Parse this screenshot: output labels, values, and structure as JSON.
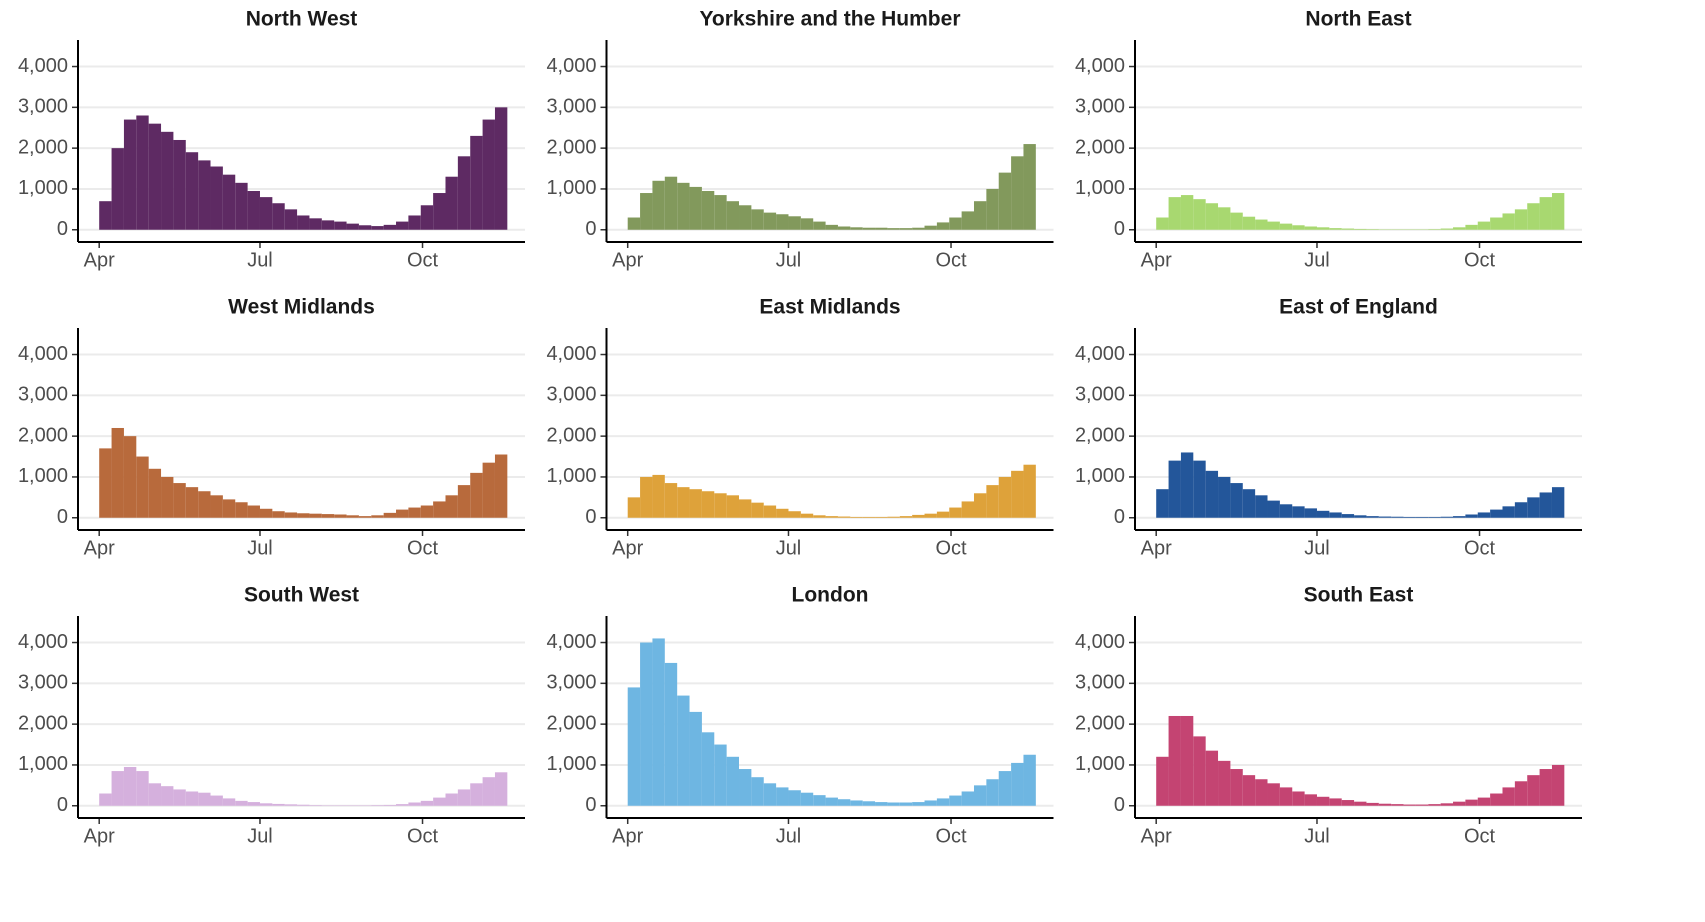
{
  "chart_data": [
    {
      "type": "bar",
      "title": "North West",
      "color": "#5e2a63",
      "x": [
        0,
        7,
        14,
        21,
        28,
        35,
        42,
        49,
        56,
        63,
        70,
        77,
        84,
        91,
        98,
        105,
        112,
        119,
        126,
        133,
        140,
        147,
        154,
        161,
        168,
        175,
        182,
        189,
        196,
        203,
        210,
        217,
        224
      ],
      "values": [
        700,
        2000,
        2700,
        2800,
        2600,
        2400,
        2200,
        1900,
        1700,
        1550,
        1350,
        1150,
        950,
        800,
        650,
        500,
        350,
        280,
        230,
        200,
        150,
        110,
        90,
        120,
        200,
        350,
        600,
        900,
        1300,
        1800,
        2300,
        2700,
        3000
      ],
      "xlim": [
        -12,
        241
      ],
      "ylim": [
        -300,
        4650
      ],
      "xticks": [
        {
          "value": 0,
          "label": "Apr"
        },
        {
          "value": 91,
          "label": "Jul"
        },
        {
          "value": 183,
          "label": "Oct"
        }
      ],
      "yticks": [
        0,
        {
          "value": 1000,
          "label": "1,000"
        },
        {
          "value": 2000,
          "label": "2,000"
        },
        {
          "value": 3000,
          "label": "3,000"
        },
        {
          "value": 4000,
          "label": "4,000"
        }
      ],
      "grid": true
    },
    {
      "type": "bar",
      "title": "Yorkshire and the Humber",
      "color": "#82995c",
      "x": [
        0,
        7,
        14,
        21,
        28,
        35,
        42,
        49,
        56,
        63,
        70,
        77,
        84,
        91,
        98,
        105,
        112,
        119,
        126,
        133,
        140,
        147,
        154,
        161,
        168,
        175,
        182,
        189,
        196,
        203,
        210,
        217,
        224
      ],
      "values": [
        300,
        900,
        1200,
        1300,
        1150,
        1050,
        950,
        850,
        700,
        600,
        500,
        420,
        380,
        330,
        280,
        200,
        120,
        80,
        60,
        50,
        50,
        40,
        40,
        50,
        100,
        180,
        300,
        450,
        700,
        1000,
        1400,
        1800,
        2100
      ],
      "xlim": [
        -12,
        241
      ],
      "ylim": [
        -300,
        4650
      ],
      "xticks": [
        {
          "value": 0,
          "label": "Apr"
        },
        {
          "value": 91,
          "label": "Jul"
        },
        {
          "value": 183,
          "label": "Oct"
        }
      ],
      "yticks": [
        0,
        {
          "value": 1000,
          "label": "1,000"
        },
        {
          "value": 2000,
          "label": "2,000"
        },
        {
          "value": 3000,
          "label": "3,000"
        },
        {
          "value": 4000,
          "label": "4,000"
        }
      ],
      "grid": true
    },
    {
      "type": "bar",
      "title": "North East",
      "color": "#a8d870",
      "x": [
        0,
        7,
        14,
        21,
        28,
        35,
        42,
        49,
        56,
        63,
        70,
        77,
        84,
        91,
        98,
        105,
        112,
        119,
        126,
        133,
        140,
        147,
        154,
        161,
        168,
        175,
        182,
        189,
        196,
        203,
        210,
        217,
        224
      ],
      "values": [
        300,
        800,
        850,
        750,
        650,
        550,
        420,
        320,
        250,
        200,
        150,
        110,
        80,
        60,
        40,
        30,
        20,
        15,
        10,
        10,
        10,
        10,
        15,
        30,
        60,
        120,
        200,
        300,
        400,
        500,
        650,
        800,
        900
      ],
      "xlim": [
        -12,
        241
      ],
      "ylim": [
        -300,
        4650
      ],
      "xticks": [
        {
          "value": 0,
          "label": "Apr"
        },
        {
          "value": 91,
          "label": "Jul"
        },
        {
          "value": 183,
          "label": "Oct"
        }
      ],
      "yticks": [
        0,
        {
          "value": 1000,
          "label": "1,000"
        },
        {
          "value": 2000,
          "label": "2,000"
        },
        {
          "value": 3000,
          "label": "3,000"
        },
        {
          "value": 4000,
          "label": "4,000"
        }
      ],
      "grid": true
    },
    {
      "type": "bar",
      "title": "West Midlands",
      "color": "#b86a3c",
      "x": [
        0,
        7,
        14,
        21,
        28,
        35,
        42,
        49,
        56,
        63,
        70,
        77,
        84,
        91,
        98,
        105,
        112,
        119,
        126,
        133,
        140,
        147,
        154,
        161,
        168,
        175,
        182,
        189,
        196,
        203,
        210,
        217,
        224
      ],
      "values": [
        1700,
        2200,
        2000,
        1500,
        1200,
        1000,
        850,
        750,
        650,
        550,
        450,
        380,
        300,
        220,
        160,
        130,
        110,
        100,
        90,
        80,
        60,
        40,
        60,
        120,
        200,
        250,
        300,
        400,
        550,
        800,
        1100,
        1350,
        1550
      ],
      "xlim": [
        -12,
        241
      ],
      "ylim": [
        -300,
        4650
      ],
      "xticks": [
        {
          "value": 0,
          "label": "Apr"
        },
        {
          "value": 91,
          "label": "Jul"
        },
        {
          "value": 183,
          "label": "Oct"
        }
      ],
      "yticks": [
        0,
        {
          "value": 1000,
          "label": "1,000"
        },
        {
          "value": 2000,
          "label": "2,000"
        },
        {
          "value": 3000,
          "label": "3,000"
        },
        {
          "value": 4000,
          "label": "4,000"
        }
      ],
      "grid": true
    },
    {
      "type": "bar",
      "title": "East Midlands",
      "color": "#dea23a",
      "x": [
        0,
        7,
        14,
        21,
        28,
        35,
        42,
        49,
        56,
        63,
        70,
        77,
        84,
        91,
        98,
        105,
        112,
        119,
        126,
        133,
        140,
        147,
        154,
        161,
        168,
        175,
        182,
        189,
        196,
        203,
        210,
        217,
        224
      ],
      "values": [
        500,
        1000,
        1050,
        850,
        750,
        700,
        650,
        600,
        550,
        450,
        370,
        300,
        220,
        160,
        100,
        60,
        40,
        30,
        20,
        20,
        20,
        25,
        40,
        70,
        100,
        150,
        250,
        400,
        600,
        800,
        1000,
        1150,
        1300
      ],
      "xlim": [
        -12,
        241
      ],
      "ylim": [
        -300,
        4650
      ],
      "xticks": [
        {
          "value": 0,
          "label": "Apr"
        },
        {
          "value": 91,
          "label": "Jul"
        },
        {
          "value": 183,
          "label": "Oct"
        }
      ],
      "yticks": [
        0,
        {
          "value": 1000,
          "label": "1,000"
        },
        {
          "value": 2000,
          "label": "2,000"
        },
        {
          "value": 3000,
          "label": "3,000"
        },
        {
          "value": 4000,
          "label": "4,000"
        }
      ],
      "grid": true
    },
    {
      "type": "bar",
      "title": "East of England",
      "color": "#23569a",
      "x": [
        0,
        7,
        14,
        21,
        28,
        35,
        42,
        49,
        56,
        63,
        70,
        77,
        84,
        91,
        98,
        105,
        112,
        119,
        126,
        133,
        140,
        147,
        154,
        161,
        168,
        175,
        182,
        189,
        196,
        203,
        210,
        217,
        224
      ],
      "values": [
        700,
        1400,
        1600,
        1400,
        1150,
        1000,
        850,
        700,
        550,
        420,
        330,
        280,
        230,
        170,
        130,
        90,
        60,
        40,
        30,
        25,
        20,
        20,
        20,
        25,
        40,
        80,
        130,
        200,
        280,
        380,
        500,
        620,
        750
      ],
      "xlim": [
        -12,
        241
      ],
      "ylim": [
        -300,
        4650
      ],
      "xticks": [
        {
          "value": 0,
          "label": "Apr"
        },
        {
          "value": 91,
          "label": "Jul"
        },
        {
          "value": 183,
          "label": "Oct"
        }
      ],
      "yticks": [
        0,
        {
          "value": 1000,
          "label": "1,000"
        },
        {
          "value": 2000,
          "label": "2,000"
        },
        {
          "value": 3000,
          "label": "3,000"
        },
        {
          "value": 4000,
          "label": "4,000"
        }
      ],
      "grid": true
    },
    {
      "type": "bar",
      "title": "South West",
      "color": "#d5b0dd",
      "x": [
        0,
        7,
        14,
        21,
        28,
        35,
        42,
        49,
        56,
        63,
        70,
        77,
        84,
        91,
        98,
        105,
        112,
        119,
        126,
        133,
        140,
        147,
        154,
        161,
        168,
        175,
        182,
        189,
        196,
        203,
        210,
        217,
        224
      ],
      "values": [
        300,
        850,
        950,
        850,
        550,
        480,
        400,
        350,
        320,
        250,
        180,
        120,
        90,
        60,
        45,
        35,
        25,
        15,
        10,
        10,
        10,
        10,
        15,
        20,
        40,
        80,
        120,
        200,
        300,
        400,
        550,
        700,
        820
      ],
      "xlim": [
        -12,
        241
      ],
      "ylim": [
        -300,
        4650
      ],
      "xticks": [
        {
          "value": 0,
          "label": "Apr"
        },
        {
          "value": 91,
          "label": "Jul"
        },
        {
          "value": 183,
          "label": "Oct"
        }
      ],
      "yticks": [
        0,
        {
          "value": 1000,
          "label": "1,000"
        },
        {
          "value": 2000,
          "label": "2,000"
        },
        {
          "value": 3000,
          "label": "3,000"
        },
        {
          "value": 4000,
          "label": "4,000"
        }
      ],
      "grid": true
    },
    {
      "type": "bar",
      "title": "London",
      "color": "#6eb6e2",
      "x": [
        0,
        7,
        14,
        21,
        28,
        35,
        42,
        49,
        56,
        63,
        70,
        77,
        84,
        91,
        98,
        105,
        112,
        119,
        126,
        133,
        140,
        147,
        154,
        161,
        168,
        175,
        182,
        189,
        196,
        203,
        210,
        217,
        224
      ],
      "values": [
        2900,
        4000,
        4100,
        3500,
        2700,
        2300,
        1800,
        1500,
        1200,
        900,
        700,
        550,
        450,
        380,
        320,
        260,
        200,
        160,
        130,
        110,
        90,
        80,
        80,
        90,
        130,
        180,
        250,
        350,
        500,
        650,
        850,
        1050,
        1250
      ],
      "xlim": [
        -12,
        241
      ],
      "ylim": [
        -300,
        4650
      ],
      "xticks": [
        {
          "value": 0,
          "label": "Apr"
        },
        {
          "value": 91,
          "label": "Jul"
        },
        {
          "value": 183,
          "label": "Oct"
        }
      ],
      "yticks": [
        0,
        {
          "value": 1000,
          "label": "1,000"
        },
        {
          "value": 2000,
          "label": "2,000"
        },
        {
          "value": 3000,
          "label": "3,000"
        },
        {
          "value": 4000,
          "label": "4,000"
        }
      ],
      "grid": true
    },
    {
      "type": "bar",
      "title": "South East",
      "color": "#c44472",
      "x": [
        0,
        7,
        14,
        21,
        28,
        35,
        42,
        49,
        56,
        63,
        70,
        77,
        84,
        91,
        98,
        105,
        112,
        119,
        126,
        133,
        140,
        147,
        154,
        161,
        168,
        175,
        182,
        189,
        196,
        203,
        210,
        217,
        224
      ],
      "values": [
        1200,
        2200,
        2200,
        1700,
        1350,
        1100,
        900,
        750,
        650,
        550,
        450,
        350,
        280,
        220,
        180,
        140,
        100,
        70,
        50,
        40,
        30,
        30,
        40,
        60,
        100,
        150,
        200,
        300,
        450,
        600,
        750,
        900,
        1000
      ],
      "xlim": [
        -12,
        241
      ],
      "ylim": [
        -300,
        4650
      ],
      "xticks": [
        {
          "value": 0,
          "label": "Apr"
        },
        {
          "value": 91,
          "label": "Jul"
        },
        {
          "value": 183,
          "label": "Oct"
        }
      ],
      "yticks": [
        0,
        {
          "value": 1000,
          "label": "1,000"
        },
        {
          "value": 2000,
          "label": "2,000"
        },
        {
          "value": 3000,
          "label": "3,000"
        },
        {
          "value": 4000,
          "label": "4,000"
        }
      ],
      "grid": true
    }
  ]
}
